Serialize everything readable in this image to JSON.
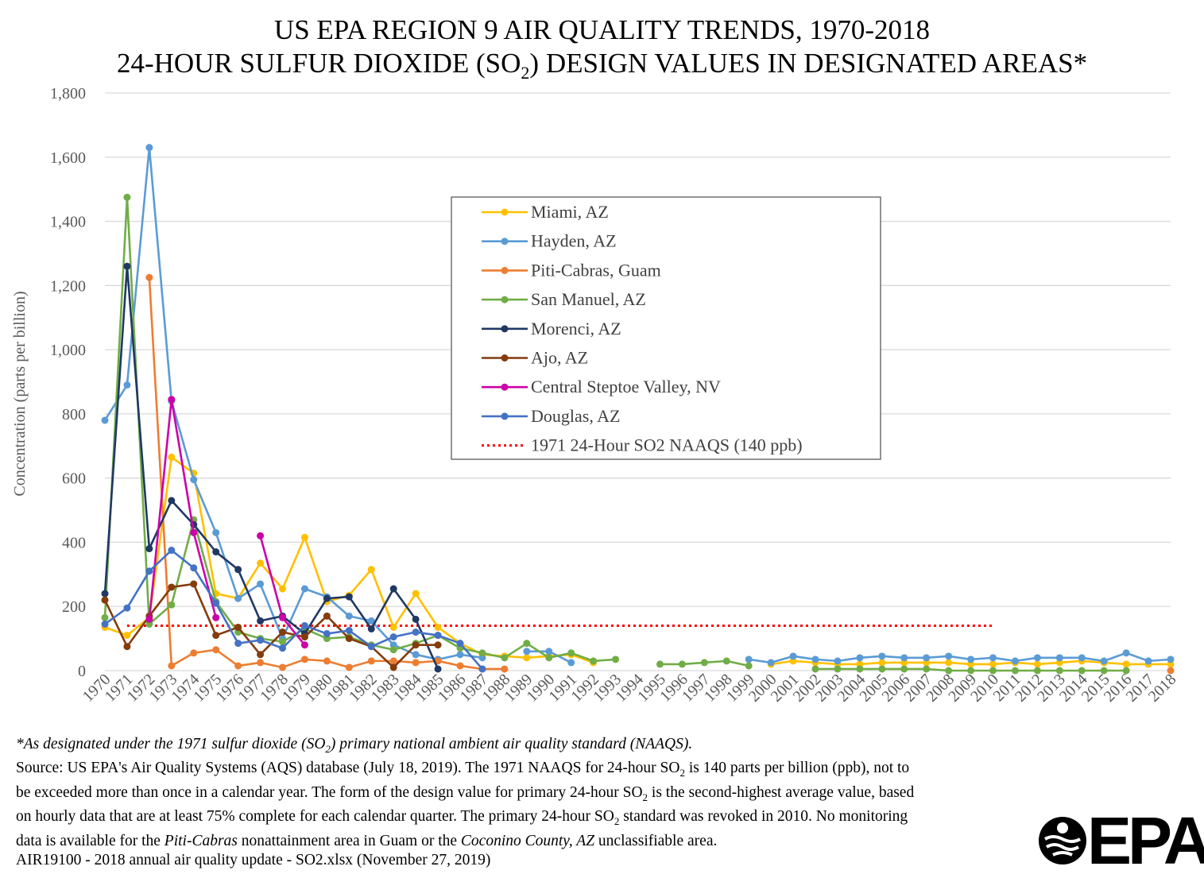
{
  "title_line1": "US EPA REGION 9 AIR QUALITY TRENDS, 1970-2018",
  "title_line2_pre": "24-HOUR SULFUR DIOXIDE (SO",
  "title_line2_sub": "2",
  "title_line2_post": ") DESIGN VALUES IN DESIGNATED AREAS*",
  "chart_data": {
    "type": "line",
    "title": "US EPA REGION 9 AIR QUALITY TRENDS, 1970-2018 24-HOUR SULFUR DIOXIDE (SO2) DESIGN VALUES IN DESIGNATED AREAS*",
    "xlabel": "",
    "ylabel": "Concentration (parts per billion)",
    "ylim": [
      0,
      1800
    ],
    "yticks": [
      0,
      200,
      400,
      600,
      800,
      1000,
      1200,
      1400,
      1600,
      1800
    ],
    "ytick_labels": [
      "0",
      "200",
      "400",
      "600",
      "800",
      "1,000",
      "1,200",
      "1,400",
      "1,600",
      "1,800"
    ],
    "grid": true,
    "legend_position": "center-right",
    "x": [
      1970,
      1971,
      1972,
      1973,
      1974,
      1975,
      1976,
      1977,
      1978,
      1979,
      1980,
      1981,
      1982,
      1983,
      1984,
      1985,
      1986,
      1987,
      1988,
      1989,
      1990,
      1991,
      1992,
      1993,
      1994,
      1995,
      1996,
      1997,
      1998,
      1999,
      2000,
      2001,
      2002,
      2003,
      2004,
      2005,
      2006,
      2007,
      2008,
      2009,
      2010,
      2011,
      2012,
      2013,
      2014,
      2015,
      2016,
      2017,
      2018
    ],
    "series": [
      {
        "name": "Miami, AZ",
        "color": "#FFC000",
        "values": [
          135,
          110,
          165,
          665,
          615,
          240,
          225,
          335,
          255,
          415,
          215,
          235,
          315,
          135,
          240,
          135,
          85,
          50,
          45,
          40,
          45,
          50,
          25,
          null,
          null,
          null,
          null,
          null,
          null,
          null,
          20,
          30,
          25,
          20,
          20,
          25,
          25,
          25,
          25,
          20,
          20,
          25,
          20,
          25,
          30,
          25,
          20,
          20,
          20
        ]
      },
      {
        "name": "Hayden, AZ",
        "color": "#5B9BD5",
        "values": [
          780,
          890,
          1630,
          840,
          595,
          430,
          225,
          270,
          100,
          255,
          230,
          170,
          155,
          80,
          50,
          35,
          50,
          40,
          null,
          60,
          60,
          25,
          null,
          null,
          null,
          null,
          null,
          null,
          null,
          35,
          25,
          45,
          35,
          30,
          40,
          45,
          40,
          40,
          45,
          35,
          40,
          30,
          40,
          40,
          40,
          30,
          55,
          30,
          35
        ]
      },
      {
        "name": "Piti-Cabras, Guam",
        "color": "#ED7D31",
        "values": [
          null,
          null,
          1225,
          15,
          55,
          65,
          15,
          25,
          10,
          35,
          30,
          10,
          30,
          30,
          25,
          30,
          15,
          5,
          5,
          null,
          null,
          null,
          null,
          null,
          null,
          null,
          null,
          null,
          null,
          null,
          null,
          null,
          null,
          null,
          null,
          null,
          null,
          null,
          null,
          null,
          null,
          null,
          null,
          null,
          null,
          null,
          null,
          null,
          0
        ]
      },
      {
        "name": "San Manuel, AZ",
        "color": "#70AD47",
        "values": [
          165,
          1475,
          145,
          205,
          470,
          215,
          120,
          100,
          90,
          130,
          100,
          105,
          80,
          65,
          85,
          110,
          70,
          55,
          40,
          85,
          40,
          55,
          30,
          35,
          null,
          20,
          20,
          25,
          30,
          15,
          null,
          null,
          5,
          5,
          5,
          5,
          5,
          5,
          0,
          0,
          0,
          0,
          0,
          0,
          0,
          0,
          0,
          null,
          null
        ]
      },
      {
        "name": "Morenci, AZ",
        "color": "#203864",
        "values": [
          240,
          1260,
          380,
          530,
          455,
          370,
          315,
          155,
          170,
          115,
          225,
          230,
          130,
          255,
          160,
          5,
          null,
          null,
          null,
          null,
          null,
          null,
          null,
          null,
          null,
          null,
          null,
          null,
          null,
          null,
          null,
          null,
          null,
          null,
          null,
          null,
          null,
          null,
          null,
          null,
          null,
          null,
          null,
          null,
          null,
          null,
          null,
          null,
          null
        ]
      },
      {
        "name": "Ajo, AZ",
        "color": "#843C0C",
        "values": [
          220,
          75,
          170,
          260,
          270,
          110,
          135,
          50,
          120,
          105,
          170,
          100,
          75,
          10,
          80,
          80,
          null,
          null,
          null,
          null,
          null,
          null,
          null,
          null,
          null,
          null,
          null,
          null,
          null,
          null,
          null,
          null,
          null,
          null,
          null,
          null,
          null,
          null,
          null,
          null,
          null,
          null,
          null,
          null,
          null,
          null,
          null,
          null,
          null
        ]
      },
      {
        "name": "Central Steptoe Valley, NV",
        "color": "#CC00A8",
        "values": [
          null,
          null,
          160,
          845,
          430,
          165,
          null,
          420,
          165,
          80,
          null,
          null,
          null,
          null,
          null,
          null,
          null,
          null,
          null,
          null,
          null,
          null,
          null,
          null,
          null,
          null,
          null,
          null,
          null,
          null,
          null,
          null,
          null,
          null,
          null,
          null,
          null,
          null,
          null,
          null,
          null,
          null,
          null,
          null,
          null,
          null,
          null,
          null,
          null
        ]
      },
      {
        "name": "Douglas, AZ",
        "color": "#4472C4",
        "values": [
          145,
          195,
          310,
          375,
          320,
          210,
          85,
          95,
          70,
          140,
          115,
          125,
          75,
          105,
          120,
          110,
          85,
          5,
          null,
          null,
          null,
          null,
          null,
          null,
          null,
          null,
          null,
          null,
          null,
          null,
          null,
          null,
          null,
          null,
          null,
          null,
          null,
          null,
          null,
          null,
          null,
          null,
          null,
          null,
          null,
          null,
          null,
          null,
          null
        ]
      }
    ],
    "reference_line": {
      "name": "1971 24-Hour SO2 NAAQS (140 ppb)",
      "color": "#FF0000",
      "value": 140,
      "x_range": [
        1971,
        2010
      ],
      "style": "dotted"
    }
  },
  "notes": {
    "line1_a": "*As designated under the 1971 sulfur dioxide (SO",
    "line1_sub": "2",
    "line1_b": ") primary national ambient air quality standard (NAAQS).",
    "line2_a": "Source: US EPA's Air Quality Systems (AQS) database (July 18, 2019). The 1971 NAAQS for 24-hour SO",
    "line2_sub": "2",
    "line2_b": " is 140 parts per billion (ppb), not to",
    "line3_a": "be exceeded  more than once in a calendar year. The form of the design value for primary 24-hour SO",
    "line3_sub": "2",
    "line3_b": " is the second-highest average value, based",
    "line4": "on hourly data that are at least 75% complete for each calendar quarter. The primary 24-hour SO",
    "line4_sub": "2",
    "line4_b": " standard was revoked in 2010. No monitoring",
    "line5_a": "data is available for the ",
    "line5_i1": "Piti-Cabras",
    "line5_b": " nonattainment area in Guam or the ",
    "line5_i2": "Coconino County, AZ",
    "line5_c": " unclassifiable area.",
    "line6": "AIR19100 - 2018 annual air quality update - SO2.xlsx (November 27, 2019)"
  },
  "logo": {
    "text": "EPA"
  }
}
